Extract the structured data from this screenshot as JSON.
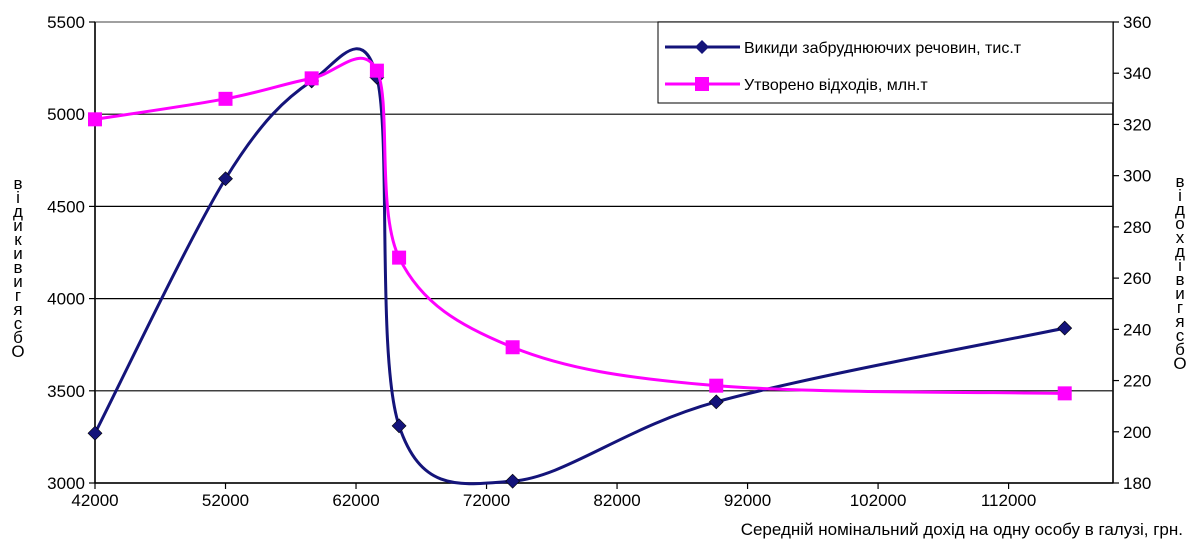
{
  "chart_data": {
    "type": "line",
    "title": "",
    "xlabel": "Середній номінальний дохід на одну особу в галузі, грн.",
    "ylabel_left": "Обсяги викидів",
    "ylabel_right": "Обсяги відходів",
    "xlim": [
      42000,
      120000
    ],
    "xticks": [
      42000,
      52000,
      62000,
      72000,
      82000,
      92000,
      102000,
      112000
    ],
    "ylim_left": [
      3000,
      5500
    ],
    "yticks_left": [
      3000,
      3500,
      4000,
      4500,
      5000,
      5500
    ],
    "ylim_right": [
      180,
      360
    ],
    "yticks_right": [
      180,
      200,
      220,
      240,
      260,
      280,
      300,
      320,
      340,
      360
    ],
    "grid": "horizontal",
    "legend_position": "top-right",
    "series": [
      {
        "name": "Викиди забруднюючих речовин, тис.т",
        "axis": "left",
        "color": "#14147a",
        "marker": "diamond",
        "x": [
          42000,
          52000,
          58600,
          63600,
          65300,
          74000,
          89600,
          116300
        ],
        "y": [
          3270,
          4650,
          5180,
          5200,
          3310,
          3010,
          3440,
          3840
        ]
      },
      {
        "name": "Утворено відходів, млн.т",
        "axis": "right",
        "color": "#ff00ff",
        "marker": "square",
        "x": [
          42000,
          52000,
          58600,
          63600,
          65300,
          74000,
          89600,
          116300
        ],
        "y": [
          322,
          330,
          338,
          341,
          268,
          233,
          218,
          215
        ]
      }
    ]
  }
}
